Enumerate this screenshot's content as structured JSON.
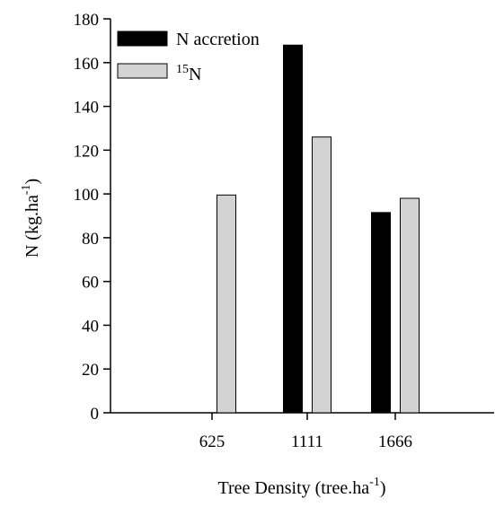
{
  "chart_data": {
    "type": "bar",
    "categories": [
      "625",
      "1111",
      "1666"
    ],
    "series": [
      {
        "name": "N accretion",
        "values": [
          null,
          168,
          91.5
        ],
        "color": "#000000"
      },
      {
        "name": "15N",
        "name_sup": "15",
        "name_main": "N",
        "values": [
          99.5,
          126,
          98
        ],
        "color": "#d3d3d3"
      }
    ],
    "xlabel": {
      "main": "Tree Density (tree.ha",
      "sup": "-1",
      "close": ")"
    },
    "ylabel": {
      "main": "N (kg.ha",
      "sup": "-1",
      "close": ")"
    },
    "ylim": [
      0,
      180
    ],
    "yticks": [
      0,
      20,
      40,
      60,
      80,
      100,
      120,
      140,
      160,
      180
    ],
    "grid": false,
    "legend_position": "top-left"
  }
}
